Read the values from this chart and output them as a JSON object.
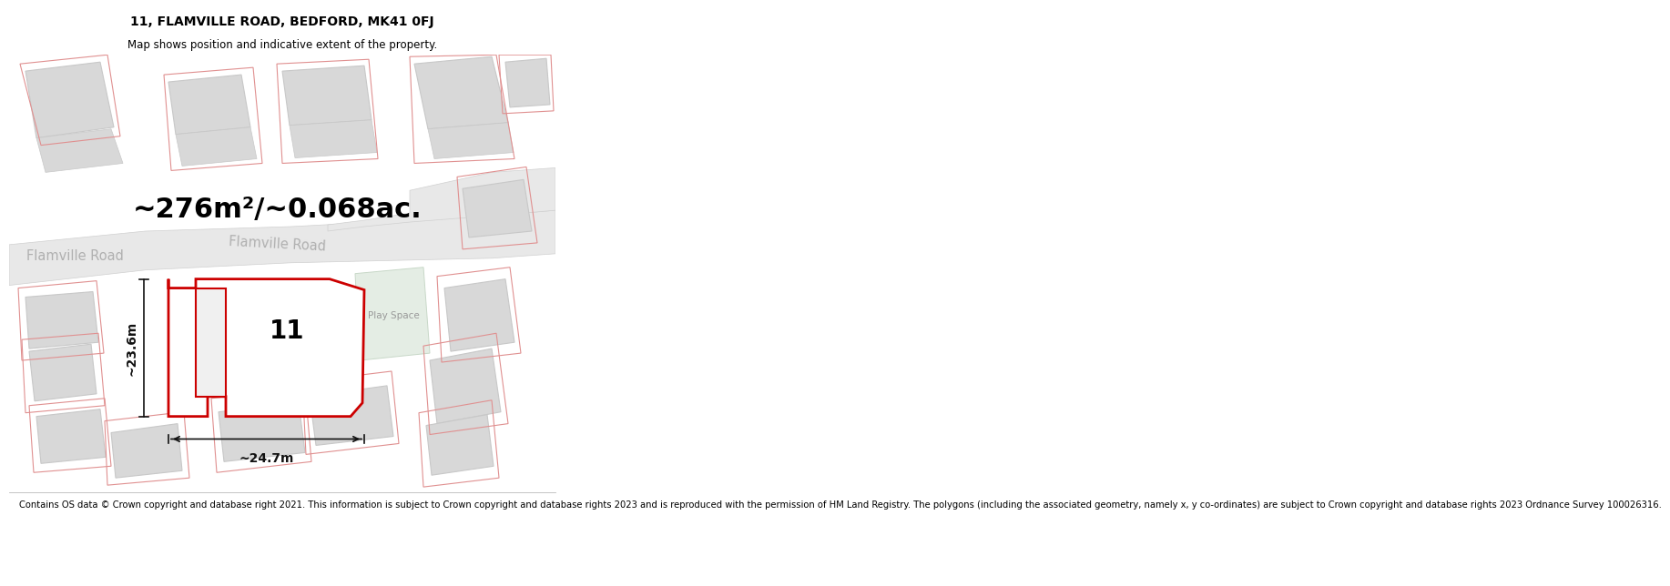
{
  "title_line1": "11, FLAMVILLE ROAD, BEDFORD, MK41 0FJ",
  "title_line2": "Map shows position and indicative extent of the property.",
  "area_text": "~276m²/~0.068ac.",
  "width_label": "~24.7m",
  "height_label": "~23.6m",
  "number_label": "11",
  "road_label1": "Flamville Road",
  "road_label2": "Flamville Road",
  "play_space_label": "Play Space",
  "footer_text": "Contains OS data © Crown copyright and database right 2021. This information is subject to Crown copyright and database rights 2023 and is reproduced with the permission of HM Land Registry. The polygons (including the associated geometry, namely x, y co-ordinates) are subject to Crown copyright and database rights 2023 Ordnance Survey 100026316.",
  "bg_color": "#ffffff",
  "map_bg_color": "#f5f5f5",
  "building_fill": "#d8d8d8",
  "building_edge": "#c8c8c8",
  "plot_stroke": "#cc0000",
  "road_fill": "#e8e8e8",
  "road_edge": "#d0d0d0",
  "pink_edge": "#e09090",
  "green_fill": "#e4ede4",
  "green_edge": "#c8d8c8",
  "road_label_color": "#b0b0b0",
  "dim_color": "#111111",
  "title_fontsize": 10,
  "subtitle_fontsize": 8.5,
  "area_fontsize": 22,
  "dim_fontsize": 10,
  "footer_fontsize": 7.2,
  "num_fontsize": 20,
  "road_label_fontsize": 10.5
}
